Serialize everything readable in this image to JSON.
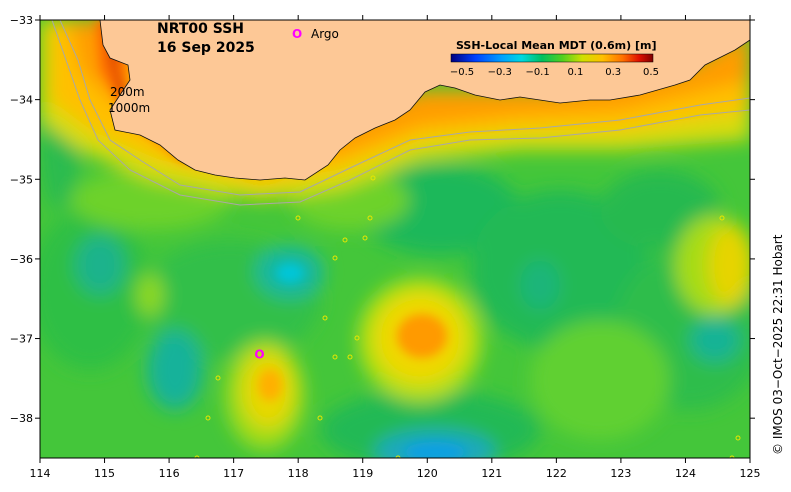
{
  "title": {
    "line1": "NRT00 SSH",
    "line2": "16 Sep 2025"
  },
  "legend": {
    "argo_marker": "O",
    "argo_label": "Argo",
    "argo_color": "#ff00ff"
  },
  "isobaths": {
    "label_200": "200m",
    "label_1000": "1000m"
  },
  "colorbar": {
    "title": "SSH-Local Mean MDT (0.6m) [m]",
    "tick_labels": [
      "−0.5",
      "−0.3",
      "−0.1",
      "0.1",
      "0.3",
      "0.5"
    ],
    "colors": [
      "#00007f",
      "#0000d0",
      "#0040ff",
      "#0090ff",
      "#00d8f0",
      "#20e0b0",
      "#00c060",
      "#30c030",
      "#60d020",
      "#a0e010",
      "#e0e000",
      "#ffc000",
      "#ff8000",
      "#ff4000",
      "#e00000",
      "#900000"
    ]
  },
  "credit": "© IMOS 03−Oct−2025 22:31 Hobart",
  "map": {
    "land_color": "#fdc896",
    "x_ticks": [
      {
        "value": 114,
        "label": "114"
      },
      {
        "value": 115,
        "label": "115"
      },
      {
        "value": 116,
        "label": "116"
      },
      {
        "value": 117,
        "label": "117"
      },
      {
        "value": 118,
        "label": "118"
      },
      {
        "value": 119,
        "label": "119"
      },
      {
        "value": 120,
        "label": "120"
      },
      {
        "value": 121,
        "label": "121"
      },
      {
        "value": 122,
        "label": "122"
      },
      {
        "value": 123,
        "label": "123"
      },
      {
        "value": 124,
        "label": "124"
      },
      {
        "value": 125,
        "label": "125"
      }
    ],
    "y_ticks": [
      {
        "value": -33,
        "label": "−33"
      },
      {
        "value": -34,
        "label": "−34"
      },
      {
        "value": -35,
        "label": "−35"
      },
      {
        "value": -36,
        "label": "−36"
      },
      {
        "value": -37,
        "label": "−37"
      },
      {
        "value": -38,
        "label": "−38"
      }
    ],
    "lon_range": [
      114,
      125
    ],
    "lat_range": [
      -38.5,
      -33
    ]
  },
  "argo_float": {
    "lon": 117.4,
    "lat": -37.2
  }
}
